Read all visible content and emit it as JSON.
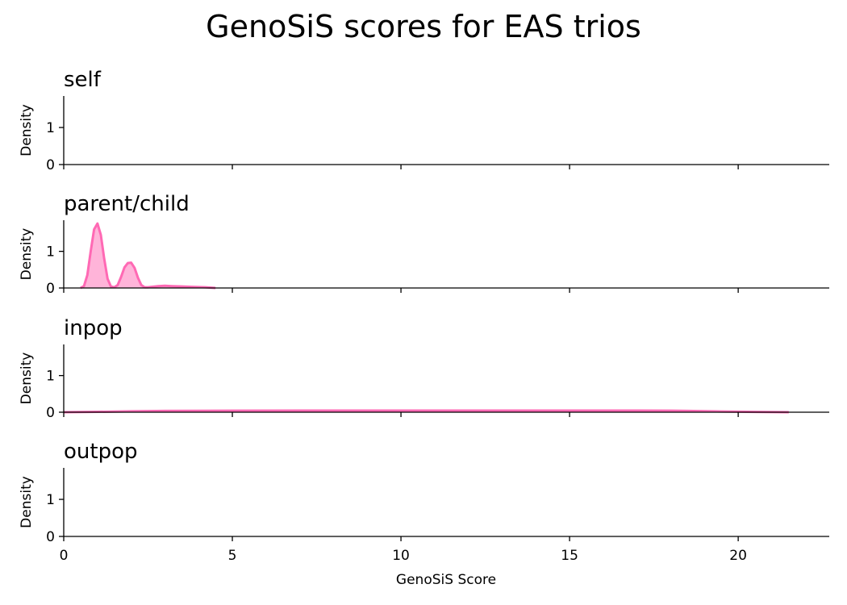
{
  "chart_data": {
    "type": "area",
    "title": "GenoSiS scores for EAS trios",
    "xlabel": "GenoSiS Score",
    "ylabel": "Density",
    "xlim": [
      0,
      22.7
    ],
    "ylim": [
      0,
      1.85
    ],
    "xticks": [
      0,
      5,
      10,
      15,
      20
    ],
    "yticks": [
      0,
      1
    ],
    "color": "#ff69b4",
    "panels": [
      {
        "title": "self",
        "x": [],
        "y": []
      },
      {
        "title": "parent/child",
        "x": [
          0.5,
          0.6,
          0.7,
          0.8,
          0.9,
          1.0,
          1.1,
          1.2,
          1.3,
          1.4,
          1.5,
          1.6,
          1.7,
          1.8,
          1.9,
          2.0,
          2.1,
          2.2,
          2.3,
          2.4,
          2.5,
          2.6,
          2.8,
          3.0,
          3.2,
          3.5,
          3.8,
          4.2,
          4.5
        ],
        "y": [
          0.0,
          0.05,
          0.35,
          1.0,
          1.6,
          1.76,
          1.45,
          0.8,
          0.25,
          0.04,
          0.02,
          0.08,
          0.3,
          0.56,
          0.68,
          0.69,
          0.55,
          0.28,
          0.08,
          0.02,
          0.02,
          0.03,
          0.05,
          0.06,
          0.05,
          0.04,
          0.03,
          0.02,
          0.0
        ]
      },
      {
        "title": "inpop",
        "x": [
          0,
          1,
          2,
          3,
          5,
          8,
          10,
          12,
          15,
          17,
          18,
          18.5,
          19.5,
          20.5,
          21.5
        ],
        "y": [
          0.0,
          0.01,
          0.025,
          0.035,
          0.04,
          0.045,
          0.045,
          0.045,
          0.045,
          0.045,
          0.04,
          0.035,
          0.02,
          0.008,
          0.0
        ]
      },
      {
        "title": "outpop",
        "x": [],
        "y": []
      }
    ]
  }
}
